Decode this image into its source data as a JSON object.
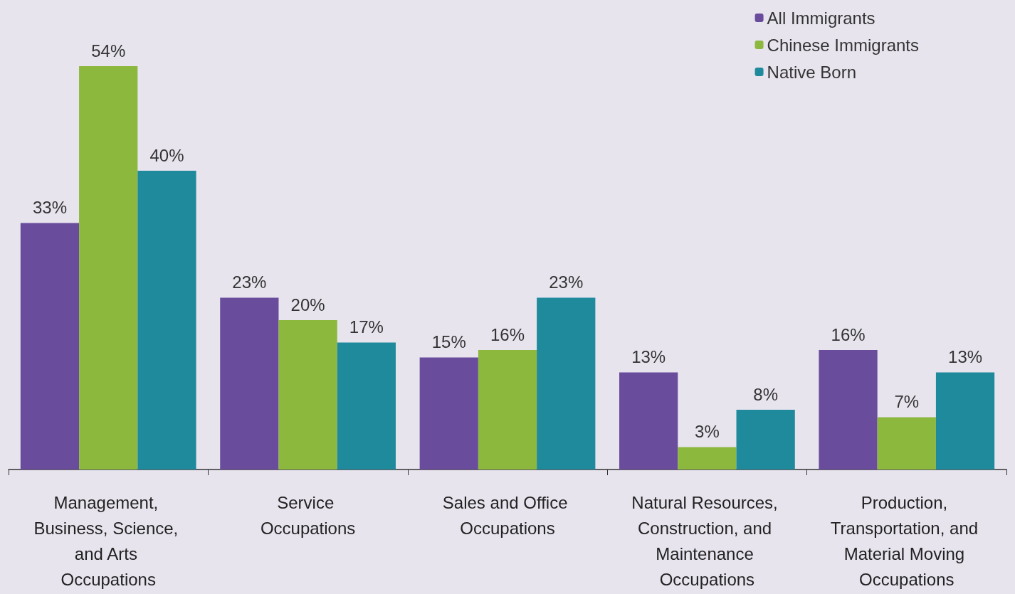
{
  "chart_data": {
    "type": "bar",
    "categories": [
      "Management, Business, Science, and Arts Occupations",
      "Service Occupations",
      "Sales and Office Occupations",
      "Natural Resources, Construction, and Maintenance Occupations",
      "Production, Transportation, and Material Moving Occupations"
    ],
    "series": [
      {
        "name": "All Immigrants",
        "color": "#6a4c9c",
        "values": [
          33,
          23,
          15,
          13,
          16
        ],
        "value_labels": [
          "33%",
          "23%",
          "15%",
          "13%",
          "16%"
        ]
      },
      {
        "name": "Chinese Immigrants",
        "color": "#8cb83e",
        "values": [
          54,
          20,
          16,
          3,
          7
        ],
        "value_labels": [
          "54%",
          "20%",
          "16%",
          "3%",
          "7%"
        ]
      },
      {
        "name": "Native Born",
        "color": "#1f8a9c",
        "values": [
          40,
          17,
          23,
          8,
          13
        ],
        "value_labels": [
          "40%",
          "17%",
          "23%",
          "8%",
          "13%"
        ]
      }
    ],
    "legend": "top right"
  }
}
